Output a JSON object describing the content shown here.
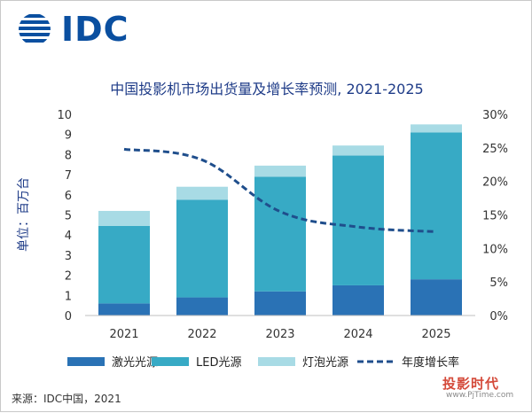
{
  "header": {
    "logo_text": "IDC"
  },
  "source_note": "来源：IDC中国，2021",
  "watermark": {
    "text": "投影时代",
    "url": "www.PjTime.com"
  },
  "colors": {
    "laser": "#2a72b5",
    "led": "#37aac5",
    "lamp": "#a8dbe5",
    "growth": "#1f4e8c"
  },
  "chart_data": {
    "type": "bar",
    "stacked": true,
    "title": "中国投影机市场出货量及增长率预测, 2021-2025",
    "ylabel": "单位：百万台",
    "xlabel": "",
    "categories": [
      "2021",
      "2022",
      "2023",
      "2024",
      "2025"
    ],
    "ylim": [
      0,
      10
    ],
    "yticks": [
      "0",
      "1",
      "2",
      "3",
      "4",
      "5",
      "6",
      "7",
      "8",
      "9",
      "10"
    ],
    "y2lim": [
      0,
      30
    ],
    "y2ticks": [
      "0%",
      "5%",
      "10%",
      "15%",
      "20%",
      "25%",
      "30%"
    ],
    "series": [
      {
        "name": "激光光源",
        "values": [
          0.6,
          0.9,
          1.2,
          1.5,
          1.8
        ]
      },
      {
        "name": "LED光源",
        "values": [
          3.85,
          4.85,
          5.7,
          6.45,
          7.3
        ]
      },
      {
        "name": "灯泡光源",
        "values": [
          0.75,
          0.65,
          0.55,
          0.5,
          0.4
        ]
      }
    ],
    "line_series": {
      "name": "年度增长率",
      "axis": "right",
      "values": [
        24.8,
        23.2,
        15.5,
        13.2,
        12.5
      ]
    },
    "legend": "bottom",
    "grid": false
  }
}
